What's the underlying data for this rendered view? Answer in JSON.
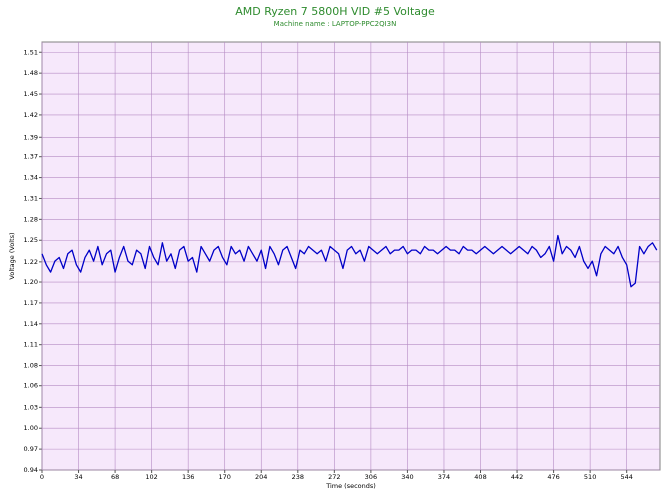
{
  "chart_data": {
    "type": "line",
    "title": "AMD Ryzen 7 5800H VID #5 Voltage",
    "subtitle": "Machine name : LAPTOP-PPC2QI3N",
    "x_label": "Time (seconds)",
    "y_label": "Voltage (Volts)",
    "color": "#0000c8",
    "grid": true,
    "xlim": [
      0,
      575
    ],
    "ylim": [
      0.94,
      1.524
    ],
    "xticks": [
      0,
      34,
      68,
      102,
      136,
      170,
      204,
      238,
      272,
      306,
      340,
      374,
      408,
      442,
      476,
      510,
      544
    ],
    "yticks": [
      {
        "value": 0.94,
        "label": "0.94"
      },
      {
        "value": 0.9685,
        "label": "0.97"
      },
      {
        "value": 0.997,
        "label": "1.00"
      },
      {
        "value": 1.0255,
        "label": "1.03"
      },
      {
        "value": 1.055,
        "label": "1.06"
      },
      {
        "value": 1.0825,
        "label": "1.08"
      },
      {
        "value": 1.111,
        "label": "1.11"
      },
      {
        "value": 1.1395,
        "label": "1.14"
      },
      {
        "value": 1.168,
        "label": "1.17"
      },
      {
        "value": 1.1965,
        "label": "1.20"
      },
      {
        "value": 1.224,
        "label": "1.22"
      },
      {
        "value": 1.2535,
        "label": "1.25"
      },
      {
        "value": 1.282,
        "label": "1.28"
      },
      {
        "value": 1.3105,
        "label": "1.31"
      },
      {
        "value": 1.339,
        "label": "1.34"
      },
      {
        "value": 1.3675,
        "label": "1.37"
      },
      {
        "value": 1.394,
        "label": "1.39"
      },
      {
        "value": 1.4245,
        "label": "1.42"
      },
      {
        "value": 1.453,
        "label": "1.45"
      },
      {
        "value": 1.4815,
        "label": "1.48"
      },
      {
        "value": 1.51,
        "label": "1.51"
      }
    ],
    "x": [
      0,
      4,
      8,
      12,
      16,
      20,
      24,
      28,
      32,
      36,
      40,
      44,
      48,
      52,
      56,
      60,
      64,
      68,
      72,
      76,
      80,
      84,
      88,
      92,
      96,
      100,
      104,
      108,
      112,
      116,
      120,
      124,
      128,
      132,
      136,
      140,
      144,
      148,
      152,
      156,
      160,
      164,
      168,
      172,
      176,
      180,
      184,
      188,
      192,
      196,
      200,
      204,
      208,
      212,
      216,
      220,
      224,
      228,
      232,
      236,
      240,
      244,
      248,
      252,
      256,
      260,
      264,
      268,
      272,
      276,
      280,
      284,
      288,
      292,
      296,
      300,
      304,
      308,
      312,
      316,
      320,
      324,
      328,
      332,
      336,
      340,
      344,
      348,
      352,
      356,
      360,
      364,
      368,
      372,
      376,
      380,
      384,
      388,
      392,
      396,
      400,
      404,
      408,
      412,
      416,
      420,
      424,
      428,
      432,
      436,
      440,
      444,
      448,
      452,
      456,
      460,
      464,
      468,
      472,
      476,
      480,
      484,
      488,
      492,
      496,
      500,
      504,
      508,
      512,
      516,
      520,
      524,
      528,
      532,
      536,
      540,
      544,
      548,
      552,
      556,
      560,
      564,
      568,
      572
    ],
    "values": [
      1.235,
      1.22,
      1.21,
      1.225,
      1.23,
      1.215,
      1.235,
      1.24,
      1.22,
      1.21,
      1.23,
      1.24,
      1.225,
      1.245,
      1.22,
      1.235,
      1.24,
      1.21,
      1.23,
      1.245,
      1.225,
      1.22,
      1.24,
      1.235,
      1.215,
      1.245,
      1.23,
      1.22,
      1.25,
      1.225,
      1.235,
      1.215,
      1.24,
      1.245,
      1.225,
      1.23,
      1.21,
      1.245,
      1.235,
      1.225,
      1.24,
      1.245,
      1.23,
      1.22,
      1.245,
      1.235,
      1.24,
      1.225,
      1.245,
      1.235,
      1.225,
      1.24,
      1.215,
      1.245,
      1.235,
      1.22,
      1.24,
      1.245,
      1.23,
      1.215,
      1.24,
      1.235,
      1.245,
      1.24,
      1.235,
      1.24,
      1.225,
      1.245,
      1.24,
      1.235,
      1.215,
      1.24,
      1.245,
      1.235,
      1.24,
      1.225,
      1.245,
      1.24,
      1.235,
      1.24,
      1.245,
      1.235,
      1.24,
      1.24,
      1.245,
      1.235,
      1.24,
      1.24,
      1.235,
      1.245,
      1.24,
      1.24,
      1.235,
      1.24,
      1.245,
      1.24,
      1.24,
      1.235,
      1.245,
      1.24,
      1.24,
      1.235,
      1.24,
      1.245,
      1.24,
      1.235,
      1.24,
      1.245,
      1.24,
      1.235,
      1.24,
      1.245,
      1.24,
      1.235,
      1.245,
      1.24,
      1.23,
      1.235,
      1.245,
      1.225,
      1.26,
      1.235,
      1.245,
      1.24,
      1.23,
      1.245,
      1.225,
      1.215,
      1.225,
      1.205,
      1.235,
      1.245,
      1.24,
      1.235,
      1.245,
      1.23,
      1.22,
      1.19,
      1.195,
      1.245,
      1.235,
      1.245,
      1.25,
      1.24
    ]
  }
}
